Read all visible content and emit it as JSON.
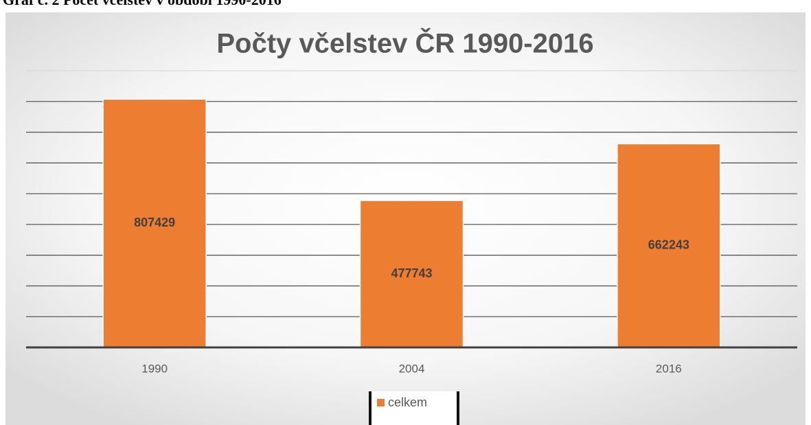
{
  "caption": "Graf č. 2 Počet včelstev v období 1990-2016",
  "chart_data": {
    "type": "bar",
    "title": "Počty včelstev ČR 1990-2016",
    "categories": [
      "1990",
      "2004",
      "2016"
    ],
    "series": [
      {
        "name": "celkem",
        "color": "#ed7d31",
        "values": [
          807429,
          477743,
          662243
        ]
      }
    ],
    "ylim": [
      0,
      900000
    ],
    "yticks": [
      0,
      100000,
      200000,
      300000,
      400000,
      500000,
      600000,
      700000,
      800000,
      900000
    ],
    "grid": true,
    "legend": "bottom"
  }
}
